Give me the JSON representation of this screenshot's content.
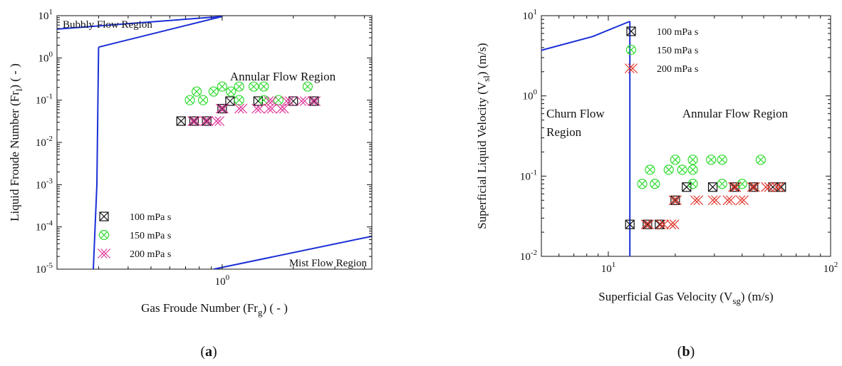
{
  "panels": [
    {
      "caption": "(a)",
      "caption_letter": "a",
      "chart_data": {
        "type": "scatter",
        "xlabel": "Gas Froude Number (Fr",
        "xlabel_sub": "g",
        "xlabel_tail": ") ( - )",
        "ylabel": "Liquid Froude Number (Fr",
        "ylabel_sub": "l",
        "ylabel_tail": ") ( - )",
        "xscale": "log",
        "yscale": "log",
        "xlim": [
          0.2,
          4.3
        ],
        "ylim": [
          1e-05,
          10
        ],
        "x_ticks": [
          {
            "value": 1,
            "label": "10",
            "exp": "0"
          }
        ],
        "y_ticks": [
          {
            "value": 1e-05,
            "label": "10",
            "exp": "-5"
          },
          {
            "value": 0.0001,
            "label": "10",
            "exp": "-4"
          },
          {
            "value": 0.001,
            "label": "10",
            "exp": "-3"
          },
          {
            "value": 0.01,
            "label": "10",
            "exp": "-2"
          },
          {
            "value": 0.1,
            "label": "10",
            "exp": "-1"
          },
          {
            "value": 1,
            "label": "10",
            "exp": "0"
          },
          {
            "value": 10,
            "label": "10",
            "exp": "1"
          }
        ],
        "legend": "bottom-left",
        "grid": false,
        "regions": [
          {
            "label": "Bubbly Flow Region",
            "anchor": "top-left"
          },
          {
            "label": "Annular Flow Region",
            "anchor": "center-right"
          },
          {
            "label": "Mist Flow Region",
            "anchor": "bottom-right"
          }
        ],
        "boundaries": [
          {
            "color": "#1a2fd6",
            "points": [
              [
                0.2,
                4.8
              ],
              [
                1.0,
                9.6
              ]
            ]
          },
          {
            "color": "#1a2fd6",
            "points": [
              [
                0.3,
                1.8
              ],
              [
                1.0,
                9.6
              ]
            ]
          },
          {
            "color": "#1a2fd6",
            "points": [
              [
                0.3,
                1.8
              ],
              [
                0.295,
                0.001
              ],
              [
                0.285,
                1e-05
              ]
            ]
          },
          {
            "color": "#1a2fd6",
            "points": [
              [
                0.92,
                1e-05
              ],
              [
                4.3,
                6e-05
              ]
            ]
          }
        ],
        "series": [
          {
            "name": "100 mPa s",
            "color": "#111111",
            "marker": "boxed-x",
            "points": [
              [
                0.67,
                0.032
              ],
              [
                0.76,
                0.032
              ],
              [
                0.86,
                0.032
              ],
              [
                1.0,
                0.063
              ],
              [
                1.08,
                0.095
              ],
              [
                1.42,
                0.095
              ],
              [
                2.0,
                0.095
              ],
              [
                2.45,
                0.095
              ]
            ]
          },
          {
            "name": "150 mPa s",
            "color": "#2fdc2f",
            "marker": "circled-x",
            "points": [
              [
                0.73,
                0.1
              ],
              [
                0.78,
                0.16
              ],
              [
                0.83,
                0.1
              ],
              [
                0.92,
                0.16
              ],
              [
                1.0,
                0.21
              ],
              [
                1.09,
                0.16
              ],
              [
                1.18,
                0.21
              ],
              [
                1.18,
                0.1
              ],
              [
                1.36,
                0.21
              ],
              [
                1.5,
                0.21
              ],
              [
                1.5,
                0.1
              ],
              [
                1.73,
                0.1
              ],
              [
                2.3,
                0.21
              ]
            ]
          },
          {
            "name": "200 mPa s",
            "color": "#e0389a",
            "marker": "double-x",
            "points": [
              [
                0.76,
                0.032
              ],
              [
                0.86,
                0.032
              ],
              [
                0.96,
                0.032
              ],
              [
                1.0,
                0.063
              ],
              [
                1.2,
                0.063
              ],
              [
                1.42,
                0.063
              ],
              [
                1.6,
                0.063
              ],
              [
                1.8,
                0.063
              ],
              [
                1.6,
                0.095
              ],
              [
                1.9,
                0.095
              ],
              [
                2.2,
                0.095
              ],
              [
                2.45,
                0.095
              ]
            ]
          }
        ]
      }
    },
    {
      "caption": "(b)",
      "caption_letter": "b",
      "chart_data": {
        "type": "scatter",
        "xlabel": "Superficial Gas Velocity  (V",
        "xlabel_sub": "sg",
        "xlabel_tail": ") (m/s)",
        "ylabel": "Superficial Liquid Velocity (V",
        "ylabel_sub": "sl",
        "ylabel_tail": ") (m/s)",
        "xscale": "log",
        "yscale": "log",
        "xlim": [
          5,
          100
        ],
        "ylim": [
          0.01,
          10
        ],
        "x_ticks": [
          {
            "value": 10,
            "label": "10",
            "exp": "1"
          },
          {
            "value": 100,
            "label": "10",
            "exp": "2"
          }
        ],
        "y_ticks": [
          {
            "value": 0.01,
            "label": "10",
            "exp": "-2"
          },
          {
            "value": 0.1,
            "label": "10",
            "exp": "-1"
          },
          {
            "value": 1,
            "label": "10",
            "exp": "0"
          },
          {
            "value": 10,
            "label": "10",
            "exp": "1"
          }
        ],
        "legend": "top-right",
        "grid": false,
        "regions": [
          {
            "label": "Churn Flow",
            "line2": "Region",
            "anchor": "center-left"
          },
          {
            "label": "Annular Flow Region",
            "anchor": "center-right"
          }
        ],
        "boundaries": [
          {
            "color": "#1a2fd6",
            "points": [
              [
                5,
                3.7
              ],
              [
                8.5,
                5.5
              ],
              [
                12.5,
                8.5
              ]
            ]
          },
          {
            "color": "#1a2fd6",
            "points": [
              [
                12.5,
                8.5
              ],
              [
                12.5,
                0.01
              ]
            ]
          }
        ],
        "series": [
          {
            "name": "100 mPa s",
            "color": "#111111",
            "marker": "boxed-x",
            "points": [
              [
                12.5,
                0.025
              ],
              [
                15,
                0.025
              ],
              [
                17,
                0.025
              ],
              [
                20,
                0.05
              ],
              [
                22.5,
                0.073
              ],
              [
                29.5,
                0.073
              ],
              [
                37,
                0.073
              ],
              [
                45,
                0.073
              ],
              [
                55,
                0.073
              ],
              [
                60,
                0.073
              ]
            ]
          },
          {
            "name": "150 mPa s",
            "color": "#2fdc2f",
            "marker": "circled-x",
            "points": [
              [
                14.2,
                0.08
              ],
              [
                15.4,
                0.12
              ],
              [
                16.2,
                0.08
              ],
              [
                18.7,
                0.12
              ],
              [
                20,
                0.16
              ],
              [
                21.5,
                0.12
              ],
              [
                24,
                0.16
              ],
              [
                24,
                0.12
              ],
              [
                24,
                0.08
              ],
              [
                29,
                0.16
              ],
              [
                32.5,
                0.16
              ],
              [
                32.5,
                0.08
              ],
              [
                40,
                0.08
              ],
              [
                48.5,
                0.16
              ]
            ]
          },
          {
            "name": "200 mPa s",
            "color": "#e0342a",
            "marker": "double-x",
            "points": [
              [
                15,
                0.025
              ],
              [
                17.5,
                0.025
              ],
              [
                19.5,
                0.025
              ],
              [
                20,
                0.05
              ],
              [
                25,
                0.05
              ],
              [
                30,
                0.05
              ],
              [
                35,
                0.05
              ],
              [
                40,
                0.05
              ],
              [
                37,
                0.073
              ],
              [
                45,
                0.073
              ],
              [
                52,
                0.073
              ],
              [
                58,
                0.073
              ]
            ]
          }
        ]
      }
    }
  ]
}
